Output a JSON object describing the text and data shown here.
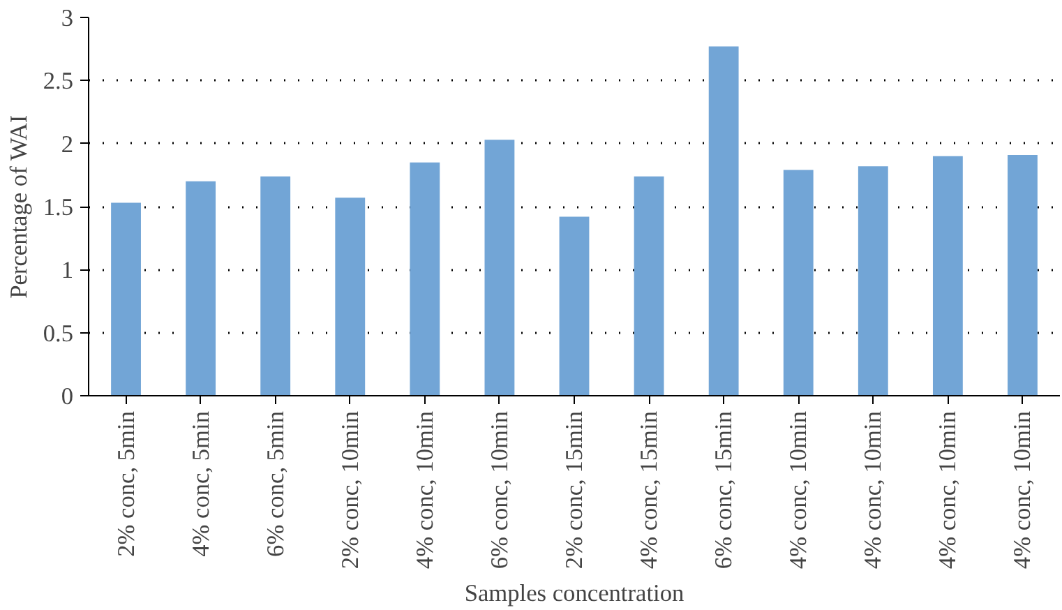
{
  "chart_data": {
    "type": "bar",
    "xlabel": "Samples concentration",
    "ylabel": "Percentage of WAI",
    "categories": [
      "2% conc, 5min",
      "4% conc, 5min",
      "6% conc, 5min",
      "2% conc, 10min",
      "4% conc, 10min",
      "6% conc, 10min",
      "2% conc, 15min",
      "4% conc, 15min",
      "6% conc, 15min",
      "4% conc, 10min",
      "4% conc, 10min",
      "4% conc, 10min",
      "4% conc, 10min"
    ],
    "values": [
      1.53,
      1.7,
      1.74,
      1.57,
      1.85,
      2.03,
      1.42,
      1.74,
      2.77,
      1.79,
      1.82,
      1.9,
      1.91
    ],
    "color": "#72a5d6",
    "ylim": [
      0,
      3
    ],
    "yticks": [
      0,
      0.5,
      1,
      1.5,
      2,
      2.5,
      3
    ],
    "grid": "y"
  }
}
